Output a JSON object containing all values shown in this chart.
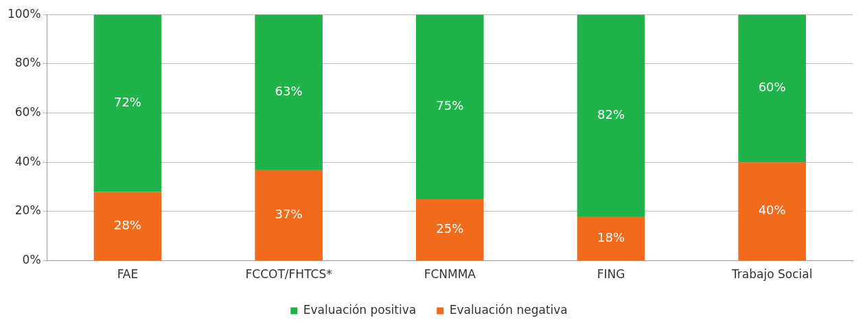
{
  "chart_data": {
    "type": "bar",
    "stacked": true,
    "categories": [
      "FAE",
      "FCCOT/FHTCS*",
      "FCNMMA",
      "FING",
      "Trabajo Social"
    ],
    "series": [
      {
        "name": "Evaluación negativa",
        "color": "#f26a1b",
        "values": [
          28,
          37,
          25,
          18,
          40
        ],
        "value_labels": [
          "28%",
          "37%",
          "25%",
          "18%",
          "40%"
        ]
      },
      {
        "name": "Evaluación positiva",
        "color": "#1fb34a",
        "values": [
          72,
          63,
          75,
          82,
          60
        ],
        "value_labels": [
          "72%",
          "63%",
          "75%",
          "82%",
          "60%"
        ]
      }
    ],
    "ylim": [
      0,
      100
    ],
    "yticks": [
      {
        "value": 0,
        "label": "0%"
      },
      {
        "value": 20,
        "label": "20%"
      },
      {
        "value": 40,
        "label": "40%"
      },
      {
        "value": 60,
        "label": "60%"
      },
      {
        "value": 80,
        "label": "80%"
      },
      {
        "value": 100,
        "label": "100%"
      }
    ],
    "grid": "y",
    "legend": "bottom"
  }
}
